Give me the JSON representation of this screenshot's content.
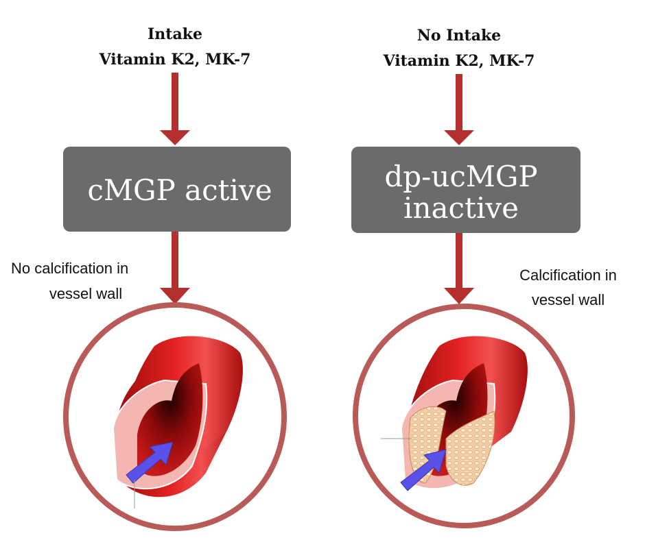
{
  "left": {
    "header_line1": "Intake",
    "header_line2": "Vitamin K2, MK-7",
    "box_line1": "cMGP active",
    "label_line1": "No calcification in",
    "label_line2": "vessel wall"
  },
  "right": {
    "header_line1": "No Intake",
    "header_line2": "Vitamin K2, MK-7",
    "box_line1": "dp-ucMGP",
    "box_line2": "inactive",
    "label_line1": "Calcification in",
    "label_line2": "vessel wall"
  },
  "colors": {
    "arrow": "#b3302e",
    "box": "#6b6b6b",
    "circle": "#b85a58",
    "flow_arrow": "#5a52e8"
  }
}
